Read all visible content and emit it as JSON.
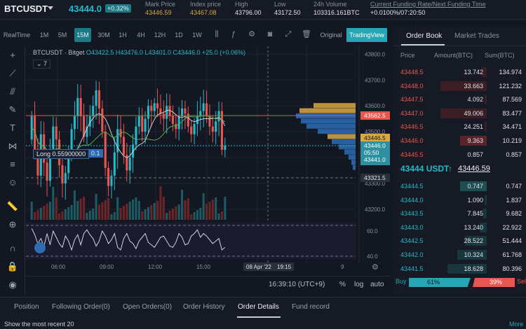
{
  "ticker": {
    "symbol": "BTCUSDT",
    "last_price": "43444.0",
    "change_pct": "+0.32%",
    "stats": [
      {
        "label": "Mark Price",
        "value": "43446.59",
        "gold": true
      },
      {
        "label": "Index price",
        "value": "43467.08",
        "gold": true
      },
      {
        "label": "High",
        "value": "43796.00",
        "gold": false
      },
      {
        "label": "Low",
        "value": "43172.50",
        "gold": false
      },
      {
        "label": "24h Volume",
        "value": "103316.161BTC",
        "gold": false
      },
      {
        "label": "Current Funding Rate/Next Funding Time",
        "value": "+0.0100%/07:20:50",
        "gold": false
      }
    ]
  },
  "toolbar": {
    "timeframes": [
      "RealTime",
      "1M",
      "5M",
      "15M",
      "30M",
      "1H",
      "4H",
      "12H",
      "1D",
      "1W"
    ],
    "active_timeframe": "15M",
    "views": {
      "original": "Original",
      "tradingview": "TradingView"
    },
    "icons": [
      "indicator-icon",
      "settings-icon",
      "camera-icon",
      "fullscreen-icon",
      "delete-icon"
    ]
  },
  "chart_legend": {
    "pair": "BTCUSDT · Bitget",
    "ohlc": "O43422.5 H43476.0 L43401.0 C43446.0 +25.0 (+0.06%)",
    "indicator_count": "7",
    "position_label": "Long 0.55900000",
    "position_qty": "0.1"
  },
  "price_labels": {
    "last": "43562.5",
    "mark": "43446.5",
    "current": "43446.0",
    "countdown": "05:50",
    "next": "43441.0",
    "line2": "43321.5"
  },
  "chart_data": {
    "type": "candlestick",
    "x_ticks": [
      "06:00",
      "09:00",
      "12:00",
      "15:00"
    ],
    "y_ticks": [
      43800.0,
      43700.0,
      43600.0,
      43500.0,
      43400.0,
      43300.0,
      43200.0
    ],
    "ylim": [
      43170,
      43820
    ],
    "oscillator_ticks": [
      60.0,
      40.0
    ],
    "oscillator_series": [
      62,
      57,
      50,
      54,
      48,
      58,
      49,
      60,
      55,
      50,
      47,
      56,
      52,
      45,
      53,
      57,
      49,
      58,
      61,
      57,
      54,
      48,
      52,
      60,
      56,
      50,
      53,
      58,
      47,
      45,
      54,
      58,
      52,
      50,
      46,
      52,
      55,
      58,
      51,
      49,
      47,
      51,
      55,
      56,
      52,
      48,
      47,
      51,
      58,
      55,
      49,
      50,
      56,
      58,
      61,
      55,
      58,
      56,
      53,
      50,
      52,
      54,
      45,
      47
    ],
    "crosshair_date": "08 Apr '22",
    "crosshair_time": "19:15",
    "right_tick_extra": "9",
    "closes": [
      43560,
      43420,
      43330,
      43490,
      43380,
      43310,
      43430,
      43520,
      43470,
      43370,
      43300,
      43340,
      43420,
      43510,
      43560,
      43630,
      43560,
      43480,
      43520,
      43560,
      43600,
      43660,
      43590,
      43500,
      43360,
      43290,
      43330,
      43420,
      43510,
      43480,
      43410,
      43350,
      43400,
      43450,
      43520,
      43560,
      43500,
      43550,
      43600,
      43580,
      43610,
      43590,
      43570,
      43550,
      43600,
      43560,
      43530,
      43510,
      43560,
      43590,
      43570,
      43520,
      43490,
      43530,
      43560,
      43580,
      43610,
      43560,
      43520,
      43500,
      43540,
      43580,
      43430,
      43446
    ]
  },
  "time_bar": {
    "clock": "16:39:10 (UTC+9)",
    "opts": [
      "%",
      "log",
      "auto"
    ]
  },
  "order_book": {
    "tabs": [
      "Order Book",
      "Market Trades"
    ],
    "headers": {
      "price": "Price",
      "amount": "Amount(BTC)",
      "sum": "Sum(BTC)"
    },
    "asks": [
      {
        "price": "43448.5",
        "amount": "13.742",
        "sum": "134.974",
        "depth": 0.1,
        "deep": false
      },
      {
        "price": "43448.0",
        "amount": "33.663",
        "sum": "121.232",
        "depth": 0.95,
        "deep": false
      },
      {
        "price": "43447.5",
        "amount": "4.092",
        "sum": "87.569",
        "depth": 0.05,
        "deep": false
      },
      {
        "price": "43447.0",
        "amount": "49.006",
        "sum": "83.477",
        "depth": 0.95,
        "deep": false
      },
      {
        "price": "43446.5",
        "amount": "24.251",
        "sum": "34.471",
        "depth": 0.05,
        "deep": false
      },
      {
        "price": "43446.0",
        "amount": "9.363",
        "sum": "10.219",
        "depth": 0.55,
        "deep": true
      },
      {
        "price": "43445.5",
        "amount": "0.857",
        "sum": "0.857",
        "depth": 0.0,
        "deep": false
      }
    ],
    "mid": {
      "price": "43444 USDT",
      "arrow": "↑",
      "mark": "43446.59"
    },
    "bids": [
      {
        "price": "43444.5",
        "amount": "0.747",
        "sum": "0.747",
        "depth": 0.55,
        "deep": true
      },
      {
        "price": "43444.0",
        "amount": "1.090",
        "sum": "1.837",
        "depth": 0.05,
        "deep": false
      },
      {
        "price": "43443.5",
        "amount": "7.845",
        "sum": "9.682",
        "depth": 0.07,
        "deep": false
      },
      {
        "price": "43443.0",
        "amount": "13.240",
        "sum": "22.922",
        "depth": 0.15,
        "deep": false
      },
      {
        "price": "43442.5",
        "amount": "28.522",
        "sum": "51.444",
        "depth": 0.45,
        "deep": false
      },
      {
        "price": "43442.0",
        "amount": "10.324",
        "sum": "61.768",
        "depth": 0.6,
        "deep": false
      },
      {
        "price": "43441.5",
        "amount": "18.628",
        "sum": "80.396",
        "depth": 0.8,
        "deep": false
      }
    ],
    "ratio": {
      "buy_label": "Buy",
      "buy_pct": "61%",
      "sell_pct": "39%",
      "sell_label": "Sell"
    }
  },
  "bottom": {
    "tabs": [
      "Position",
      "Following Order(0)",
      "Open Orders(0)",
      "Order History",
      "Order Details",
      "Fund record"
    ],
    "active": "Order Details",
    "note": "Show the most recent 20",
    "more": "More"
  },
  "colors": {
    "accent": "#26a5b4",
    "up": "#26b9c9",
    "down": "#e8574f",
    "gold": "#d9a842",
    "bg": "#131722"
  }
}
